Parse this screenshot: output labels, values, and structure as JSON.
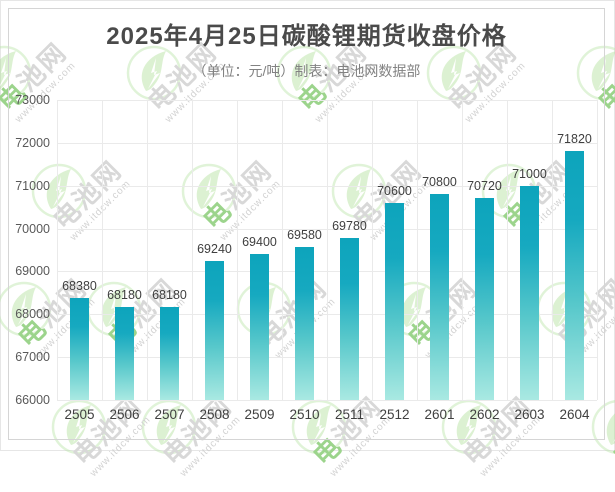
{
  "header": {
    "title": "2025年4月25日碳酸锂期货收盘价格",
    "subtitle": "（单位：元/吨）制表：电池网数据部"
  },
  "watermark": {
    "brand_first": "电",
    "brand_rest": "池网",
    "url": "www.itdcw.com"
  },
  "colors": {
    "bar_top": "#0da4bc",
    "bar_bottom": "#a9e9e2",
    "grid": "#eaeaea",
    "title_text": "#4a4a4a",
    "subtitle_text": "#828282",
    "axis_text": "#595959",
    "category_text": "#404040",
    "value_label_text": "#3f3f3f",
    "frame_border": "#d5d5d5",
    "watermark_green": "#9cd48c",
    "watermark_gray": "#d8d8d8"
  },
  "chart_data": {
    "type": "bar",
    "title": "2025年4月25日碳酸锂期货收盘价格",
    "unit": "元/吨",
    "source": "制表：电池网数据部",
    "categories": [
      "2505",
      "2506",
      "2507",
      "2508",
      "2509",
      "2510",
      "2511",
      "2512",
      "2601",
      "2602",
      "2603",
      "2604"
    ],
    "values": [
      68380,
      68180,
      68180,
      69240,
      69400,
      69580,
      69780,
      70600,
      70800,
      70720,
      71000,
      71820
    ],
    "data_labels": [
      "68380",
      "68180",
      "68180",
      "69240",
      "69400",
      "69580",
      "69780",
      "70600",
      "70800",
      "70720",
      "71000",
      "71820"
    ],
    "ylim": [
      66000,
      73000
    ],
    "ytick_step": 1000,
    "yticks": [
      "73000",
      "72000",
      "71000",
      "70000",
      "69000",
      "68000",
      "67000",
      "66000"
    ],
    "grid": true,
    "legend": "none"
  }
}
